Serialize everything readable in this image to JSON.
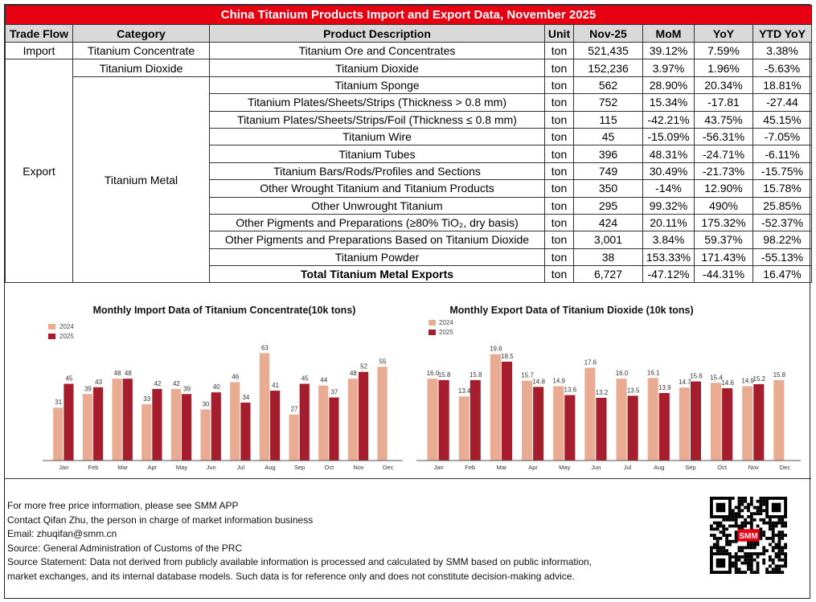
{
  "title": "China Titanium Products Import and Export Data, November 2025",
  "headers": [
    "Trade Flow",
    "Category",
    "Product Description",
    "Unit",
    "Nov-25",
    "MoM",
    "YoY",
    "YTD YoY"
  ],
  "flows": {
    "import": "Import",
    "export": "Export"
  },
  "categories": {
    "concentrate": "Titanium Concentrate",
    "dioxide": "Titanium Dioxide",
    "metal": "Titanium Metal"
  },
  "rows": [
    {
      "product": "Titanium Ore and Concentrates",
      "unit": "ton",
      "value": "521,435",
      "mom": "39.12%",
      "yoy": "7.59%",
      "ytd": "3.38%"
    },
    {
      "product": "Titanium Dioxide",
      "unit": "ton",
      "value": "152,236",
      "mom": "3.97%",
      "yoy": "1.96%",
      "ytd": "-5.63%"
    },
    {
      "product": "Titanium Sponge",
      "unit": "ton",
      "value": "562",
      "mom": "28.90%",
      "yoy": "20.34%",
      "ytd": "18.81%"
    },
    {
      "product": "Titanium Plates/Sheets/Strips (Thickness > 0.8 mm)",
      "unit": "ton",
      "value": "752",
      "mom": "15.34%",
      "yoy": "-17.81",
      "ytd": "-27.44"
    },
    {
      "product": "Titanium Plates/Sheets/Strips/Foil (Thickness ≤ 0.8 mm)",
      "unit": "ton",
      "value": "115",
      "mom": "-42.21%",
      "yoy": "43.75%",
      "ytd": "45.15%"
    },
    {
      "product": "Titanium Wire",
      "unit": "ton",
      "value": "45",
      "mom": "-15.09%",
      "yoy": "-56.31%",
      "ytd": "-7.05%"
    },
    {
      "product": "Titanium Tubes",
      "unit": "ton",
      "value": "396",
      "mom": "48.31%",
      "yoy": "-24.71%",
      "ytd": "-6.11%"
    },
    {
      "product": "Titanium Bars/Rods/Profiles and Sections",
      "unit": "ton",
      "value": "749",
      "mom": "30.49%",
      "yoy": "-21.73%",
      "ytd": "-15.75%"
    },
    {
      "product": "Other Wrought Titanium and Titanium Products",
      "unit": "ton",
      "value": "350",
      "mom": "-14%",
      "yoy": "12.90%",
      "ytd": "15.78%"
    },
    {
      "product": "Other Unwrought Titanium",
      "unit": "ton",
      "value": "295",
      "mom": "99.32%",
      "yoy": "490%",
      "ytd": "25.85%"
    },
    {
      "product": "Other Pigments and Preparations (≥80% TiO₂, dry basis)",
      "unit": "ton",
      "value": "424",
      "mom": "20.11%",
      "yoy": "175.32%",
      "ytd": "-52.37%"
    },
    {
      "product": "Other Pigments and Preparations Based on Titanium Dioxide",
      "unit": "ton",
      "value": "3,001",
      "mom": "3.84%",
      "yoy": "59.37%",
      "ytd": "98.22%"
    },
    {
      "product": "Titanium Powder",
      "unit": "ton",
      "value": "38",
      "mom": "153.33%",
      "yoy": "171.43%",
      "ytd": "-55.13%"
    },
    {
      "product": "Total Titanium Metal Exports",
      "unit": "ton",
      "value": "6,727",
      "mom": "-47.12%",
      "yoy": "-44.31%",
      "ytd": "16.47%"
    }
  ],
  "colors": {
    "title_bg": "#e60012",
    "s2024": "#e9ab92",
    "s2025": "#a61e2d"
  },
  "chart_data": [
    {
      "type": "bar",
      "title": "Monthly Import Data of Titanium Concentrate(10k tons)",
      "categories": [
        "Jan",
        "Feb",
        "Mar",
        "Apr",
        "May",
        "Jun",
        "Jul",
        "Aug",
        "Sep",
        "Oct",
        "Nov",
        "Dec"
      ],
      "series": [
        {
          "name": "2024",
          "values": [
            31,
            39,
            48,
            33,
            42,
            30,
            46,
            63,
            27,
            44,
            48,
            55
          ],
          "labels": [
            "31",
            "39",
            "48",
            "33",
            "42",
            "30",
            "46",
            "63",
            "27",
            "44",
            "48",
            "55"
          ]
        },
        {
          "name": "2025",
          "values": [
            45,
            43,
            48,
            42,
            39,
            40,
            34,
            41,
            45,
            37,
            52,
            null
          ],
          "labels": [
            "45",
            "43",
            "48",
            "42",
            "39",
            "40",
            "34",
            "41",
            "45",
            "37",
            "52",
            ""
          ]
        }
      ],
      "ylim": [
        0,
        66
      ],
      "legend": "top-left",
      "grid": false
    },
    {
      "type": "bar",
      "title": "Monthly Export Data of Titanium Dioxide (10k tons)",
      "categories": [
        "Jan",
        "Feb",
        "Mar",
        "Apr",
        "May",
        "Jun",
        "Jul",
        "Aug",
        "Sep",
        "Oct",
        "Nov",
        "Dec"
      ],
      "series": [
        {
          "name": "2024",
          "values": [
            16.0,
            13.4,
            19.6,
            15.7,
            14.9,
            17.6,
            16.0,
            16.1,
            14.7,
            15.4,
            14.9,
            15.8
          ],
          "labels": [
            "16.0",
            "13.4",
            "19.6",
            "15.7",
            "14.9",
            "17.6",
            "16.0",
            "16.1",
            "14.7",
            "15.4",
            "14.9",
            "15.8"
          ]
        },
        {
          "name": "2025",
          "values": [
            15.8,
            15.8,
            18.5,
            14.8,
            13.6,
            13.2,
            13.5,
            13.9,
            15.6,
            14.6,
            15.2,
            null
          ],
          "labels": [
            "15.8",
            "15.8",
            "18.5",
            "14.8",
            "13.6",
            "13.2",
            "13.5",
            "13.9",
            "15.6",
            "14.6",
            "15.2",
            ""
          ]
        }
      ],
      "ylim": [
        4,
        20.5
      ],
      "legend": "top-left",
      "grid": false
    }
  ],
  "footer": [
    "For more free price information, please see SMM APP",
    "Contact Qifan Zhu, the person in charge of market information business",
    "Email: zhuqifan@smm.cn",
    "Source: General Administration of Customs of the PRC",
    "Source Statement: Data not derived from publicly available information is processed and calculated by SMM based on public information,",
    "market exchanges, and its internal database models. Such data is for reference only and does not constitute decision-making advice."
  ],
  "qr_badge": "SMM"
}
